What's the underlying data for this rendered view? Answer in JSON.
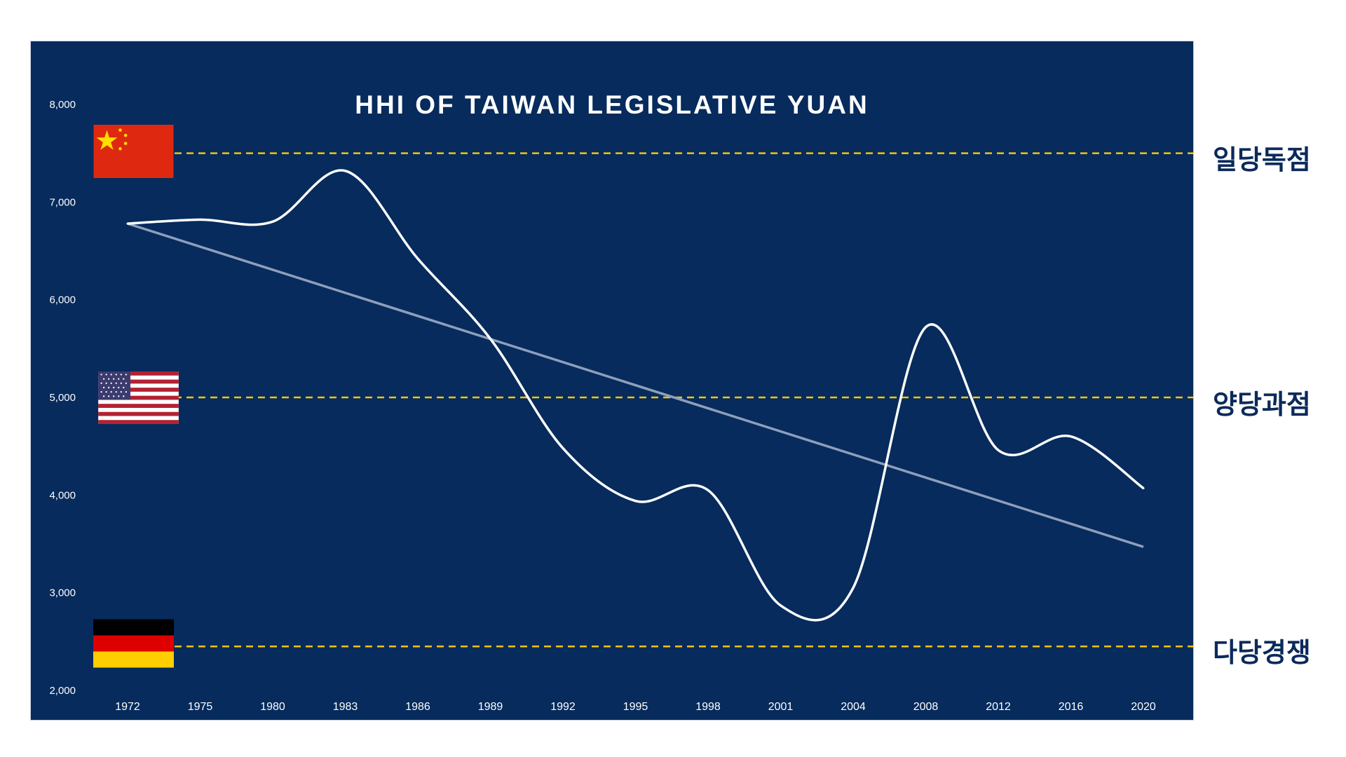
{
  "chart_data": {
    "type": "line",
    "title": "HHI OF TAIWAN LEGISLATIVE YUAN",
    "categories": [
      "1972",
      "1975",
      "1980",
      "1983",
      "1986",
      "1989",
      "1992",
      "1995",
      "1998",
      "2001",
      "2004",
      "2008",
      "2012",
      "2016",
      "2020"
    ],
    "series": [
      {
        "values": [
          6780,
          6820,
          6800,
          7320,
          6420,
          5600,
          4480,
          3940,
          4050,
          2870,
          3050,
          5720,
          4460,
          4600,
          4070
        ]
      }
    ],
    "trendline": {
      "start": 6780,
      "end": 3470
    },
    "ylim": [
      2000,
      8000
    ],
    "yticks": [
      "2,000",
      "3,000",
      "4,000",
      "5,000",
      "6,000",
      "7,000",
      "8,000"
    ],
    "grid": false,
    "reference_lines": [
      {
        "value": 7500,
        "label": "일당독점",
        "flag": "china"
      },
      {
        "value": 5000,
        "label": "양당과점",
        "flag": "usa"
      },
      {
        "value": 2450,
        "label": "다당경쟁",
        "flag": "germany"
      }
    ],
    "colors": {
      "background": "#062B5C",
      "line": "#FFFFFF",
      "trend": "#8E9FBC",
      "reference": "#F2C40F",
      "label": "#0B2A5B",
      "axis_text": "#FFFFFF"
    }
  }
}
